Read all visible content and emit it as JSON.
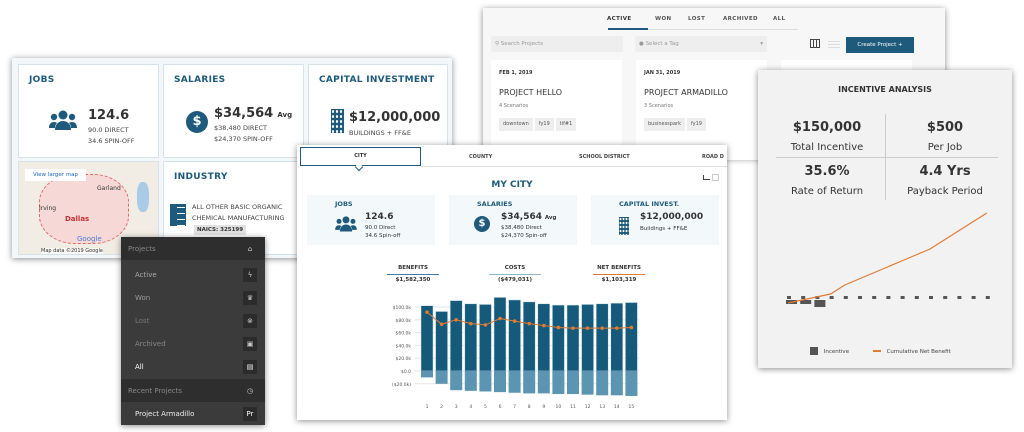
{
  "dashboard": {
    "jobs": {
      "title": "JOBS",
      "value": "124.6",
      "line1": "90.0 DIRECT",
      "line2": "34.6 SPIN-OFF",
      "icon": "users-icon"
    },
    "salaries": {
      "title": "SALARIES",
      "value": "$34,564",
      "suffix": "Avg",
      "line1": "$38,480 DIRECT",
      "line2": "$24,370 SPIN-OFF",
      "icon": "dollar-icon"
    },
    "capital": {
      "title": "CAPITAL INVESTMENT",
      "value": "$12,000,000",
      "line1": "BUILDINGS + FF&E",
      "icon": "building-icon"
    },
    "map": {
      "link": "View larger map",
      "labels": [
        "Garland",
        "Irving",
        "Dallas"
      ],
      "attribution": "Map data ©2019 Google",
      "logo": "Google"
    },
    "industry": {
      "title": "INDUSTRY",
      "line1": "ALL OTHER BASIC ORGANIC",
      "line2": "CHEMICAL MANUFACTURING",
      "naics": "NAICS: 325199",
      "icon": "checklist-icon"
    }
  },
  "projects": {
    "tabs": [
      "ACTIVE",
      "WON",
      "LOST",
      "ARCHIVED",
      "ALL"
    ],
    "active_tab": "ACTIVE",
    "search_placeholder": "Search Projects",
    "tag_placeholder": "Select a Tag",
    "create_label": "Create Project +",
    "cards": [
      {
        "date": "FEB 1, 2019",
        "name": "PROJECT HELLO",
        "scenarios": "4 Scenarios",
        "tags": [
          "downtown",
          "fy19",
          "tif#1"
        ]
      },
      {
        "date": "JAN 31, 2019",
        "name": "PROJECT ARMADILLO",
        "scenarios": "3 Scenarios",
        "tags": [
          "businesspark",
          "fy19"
        ]
      }
    ],
    "accent": "#1d5a7c"
  },
  "menu": {
    "header": "Projects",
    "items": [
      {
        "label": "Active",
        "icon": "bolt-icon"
      },
      {
        "label": "Won",
        "icon": "trophy-icon"
      },
      {
        "label": "Lost",
        "icon": "x-circle-icon"
      },
      {
        "label": "Archived",
        "icon": "archive-icon"
      },
      {
        "label": "All",
        "icon": "clipboard-icon"
      }
    ],
    "recent_header": "Recent Projects",
    "recent": [
      {
        "label": "Project Armadillo",
        "badge": "Pr"
      }
    ]
  },
  "city": {
    "tabs": [
      "CITY",
      "COUNTY",
      "SCHOOL DISTRICT",
      "ROAD D"
    ],
    "active_tab": "CITY",
    "title": "MY CITY",
    "jobs": {
      "title": "JOBS",
      "value": "124.6",
      "line1": "90.0 Direct",
      "line2": "34.6 Spin-off"
    },
    "salaries": {
      "title": "SALARIES",
      "value": "$34,564",
      "suffix": "Avg",
      "line1": "$38,480 Direct",
      "line2": "$24,370 Spin-off"
    },
    "capital": {
      "title": "CAPITAL INVEST.",
      "value": "$12,000,000",
      "line1": "Buildings + FF&E"
    },
    "summary": [
      {
        "label": "BENEFITS",
        "value": "$1,582,350",
        "color": "#3d7ca0"
      },
      {
        "label": "COSTS",
        "value": "($479,031)",
        "color": "#8fb8cc"
      },
      {
        "label": "NET BENEFITS",
        "value": "$1,103,319",
        "color": "#e07b35"
      }
    ]
  },
  "chart_data": [
    {
      "type": "bar",
      "categories": [
        "1",
        "2",
        "3",
        "4",
        "5",
        "6",
        "7",
        "8",
        "9",
        "10",
        "11",
        "12",
        "13",
        "14",
        "15"
      ],
      "ylim": [
        -40,
        120
      ],
      "yticks": [
        "$100.0k",
        "$80.0k",
        "$60.0k",
        "$40.0k",
        "$20.0k",
        "$0.0",
        "($20.0k)"
      ],
      "ytick_values": [
        100,
        80,
        60,
        40,
        20,
        0,
        -20
      ],
      "grid": true,
      "series": [
        {
          "values": [
            102,
            93,
            110,
            105,
            104,
            115,
            111,
            108,
            105,
            103,
            103,
            104,
            105,
            106,
            107
          ],
          "color": "#155a7a"
        },
        {
          "values": [
            -10,
            -20,
            -30,
            -31,
            -32,
            -33,
            -34,
            -35,
            -35,
            -36,
            -36,
            -37,
            -38,
            -38,
            -39
          ],
          "color": "#5b95b2"
        },
        {
          "type": "line",
          "values": [
            92,
            73,
            80,
            74,
            72,
            82,
            78,
            74,
            71,
            68,
            67,
            67,
            67,
            67,
            68
          ],
          "color": "#e07b35"
        }
      ]
    },
    {
      "type": "line",
      "title": "INCENTIVE ANALYSIS",
      "legend": [
        "Incentive",
        "Cumulative Net Benefit"
      ],
      "legend_placement": "bottom",
      "series": [
        {
          "name": "Incentive",
          "type": "bar",
          "values": [
            -2,
            -2,
            -4
          ],
          "color": "#555555"
        },
        {
          "name": "Cumulative Net Benefit",
          "values": [
            -2,
            -1,
            0,
            1,
            4,
            6,
            8,
            10,
            12,
            14,
            16,
            19,
            22,
            25,
            28
          ],
          "color": "#e07b35"
        }
      ]
    }
  ],
  "incentive": {
    "title": "INCENTIVE ANALYSIS",
    "stats": [
      {
        "value": "$150,000",
        "label": "Total Incentive"
      },
      {
        "value": "$500",
        "label": "Per Job"
      },
      {
        "value": "35.6%",
        "label": "Rate of Return"
      },
      {
        "value": "4.4 Yrs",
        "label": "Payback Period"
      }
    ]
  }
}
